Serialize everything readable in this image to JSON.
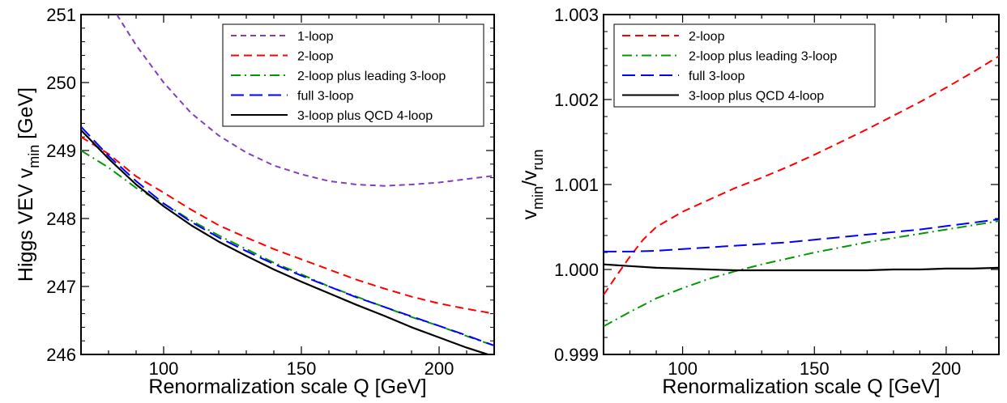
{
  "chart_data": [
    {
      "type": "line",
      "xlabel": "Renormalization scale Q  [GeV]",
      "ylabel_main": "Higgs VEV  v",
      "ylabel_sub": "min",
      "ylabel_unit": "  [GeV]",
      "xlim": [
        70,
        220
      ],
      "ylim": [
        246,
        251
      ],
      "xticks": [
        100,
        150,
        200
      ],
      "yticks": [
        246,
        247,
        248,
        249,
        250,
        251
      ],
      "grid": false,
      "legend_position": "top-right",
      "series": [
        {
          "name": "1-loop",
          "color": "#7f3fbf",
          "dash": "dashed-short",
          "x": [
            83,
            90,
            100,
            110,
            120,
            130,
            140,
            150,
            160,
            170,
            180,
            190,
            200,
            210,
            220
          ],
          "y": [
            251.0,
            250.55,
            250.0,
            249.55,
            249.22,
            248.97,
            248.78,
            248.65,
            248.55,
            248.5,
            248.48,
            248.5,
            248.53,
            248.58,
            248.63
          ]
        },
        {
          "name": "2-loop",
          "color": "#ff0000",
          "dash": "dashed",
          "x": [
            70,
            80,
            90,
            100,
            110,
            120,
            130,
            140,
            150,
            160,
            170,
            180,
            190,
            200,
            210,
            220
          ],
          "y": [
            249.2,
            248.95,
            248.62,
            248.38,
            248.13,
            247.9,
            247.72,
            247.55,
            247.4,
            247.25,
            247.1,
            246.97,
            246.85,
            246.75,
            246.67,
            246.6
          ]
        },
        {
          "name": "2-loop plus leading 3-loop",
          "color": "#009900",
          "dash": "dashdot",
          "x": [
            70,
            80,
            90,
            100,
            110,
            120,
            130,
            140,
            150,
            160,
            170,
            180,
            190,
            200,
            210,
            220
          ],
          "y": [
            249.0,
            248.75,
            248.45,
            248.22,
            247.97,
            247.75,
            247.55,
            247.35,
            247.18,
            247.0,
            246.85,
            246.7,
            246.55,
            246.42,
            246.27,
            246.13
          ]
        },
        {
          "name": "full 3-loop",
          "color": "#0000ff",
          "dash": "dashed-long",
          "x": [
            70,
            80,
            90,
            100,
            110,
            120,
            130,
            140,
            150,
            160,
            170,
            180,
            190,
            200,
            210,
            220
          ],
          "y": [
            249.35,
            248.92,
            248.55,
            248.22,
            247.95,
            247.72,
            247.52,
            247.33,
            247.16,
            247.0,
            246.84,
            246.7,
            246.56,
            246.42,
            246.28,
            246.13
          ]
        },
        {
          "name": "3-loop plus QCD 4-loop",
          "color": "#000000",
          "dash": "solid",
          "x": [
            70,
            80,
            90,
            100,
            110,
            120,
            130,
            140,
            150,
            160,
            170,
            180,
            190,
            200,
            210,
            220
          ],
          "y": [
            249.3,
            248.88,
            248.5,
            248.18,
            247.9,
            247.66,
            247.45,
            247.25,
            247.07,
            246.9,
            246.73,
            246.57,
            246.4,
            246.25,
            246.1,
            245.97
          ]
        }
      ]
    },
    {
      "type": "line",
      "xlabel": "Renormalization scale Q  [GeV]",
      "ylabel_main": "v",
      "ylabel_sub1": "min",
      "ylabel_mid": "/v",
      "ylabel_sub2": "run",
      "xlim": [
        70,
        220
      ],
      "ylim": [
        0.999,
        1.003
      ],
      "xticks": [
        100,
        150,
        200
      ],
      "yticks": [
        "0.999",
        "1.000",
        "1.001",
        "1.002",
        "1.003"
      ],
      "grid": false,
      "legend_position": "top-left",
      "series": [
        {
          "name": "2-loop",
          "color": "#ff0000",
          "dash": "dashed",
          "x": [
            70,
            75,
            80,
            85,
            90,
            100,
            110,
            120,
            130,
            140,
            150,
            160,
            170,
            180,
            190,
            200,
            210,
            220
          ],
          "y": [
            0.9997,
            0.99993,
            1.00015,
            1.00035,
            1.0005,
            1.00068,
            1.00082,
            1.00096,
            1.00108,
            1.00121,
            1.00135,
            1.0015,
            1.00165,
            1.00181,
            1.00197,
            1.00214,
            1.00232,
            1.00251
          ]
        },
        {
          "name": "2-loop plus leading 3-loop",
          "color": "#009900",
          "dash": "dashdot",
          "x": [
            70,
            80,
            90,
            100,
            110,
            120,
            130,
            140,
            150,
            160,
            170,
            180,
            190,
            200,
            210,
            220
          ],
          "y": [
            0.99933,
            0.9995,
            0.99966,
            0.99978,
            0.99989,
            0.99998,
            1.00006,
            1.00013,
            1.0002,
            1.00026,
            1.00032,
            1.00037,
            1.00042,
            1.00047,
            1.00052,
            1.00057
          ]
        },
        {
          "name": "full 3-loop",
          "color": "#0000ff",
          "dash": "dashed-long",
          "x": [
            70,
            80,
            90,
            100,
            110,
            120,
            130,
            140,
            150,
            160,
            170,
            180,
            190,
            200,
            210,
            220
          ],
          "y": [
            1.00021,
            1.00021,
            1.00022,
            1.00024,
            1.00026,
            1.00028,
            1.0003,
            1.00032,
            1.00035,
            1.00038,
            1.00041,
            1.00044,
            1.00047,
            1.00051,
            1.00055,
            1.00059
          ]
        },
        {
          "name": "3-loop plus QCD 4-loop",
          "color": "#000000",
          "dash": "solid",
          "x": [
            70,
            80,
            90,
            100,
            110,
            120,
            130,
            140,
            150,
            160,
            170,
            180,
            190,
            200,
            210,
            220
          ],
          "y": [
            1.00006,
            1.00004,
            1.00002,
            1.00001,
            1.0,
            0.99999,
            0.99999,
            0.99999,
            0.99999,
            0.99999,
            0.99999,
            1.0,
            1.0,
            1.00001,
            1.00001,
            1.00002
          ]
        }
      ]
    }
  ]
}
